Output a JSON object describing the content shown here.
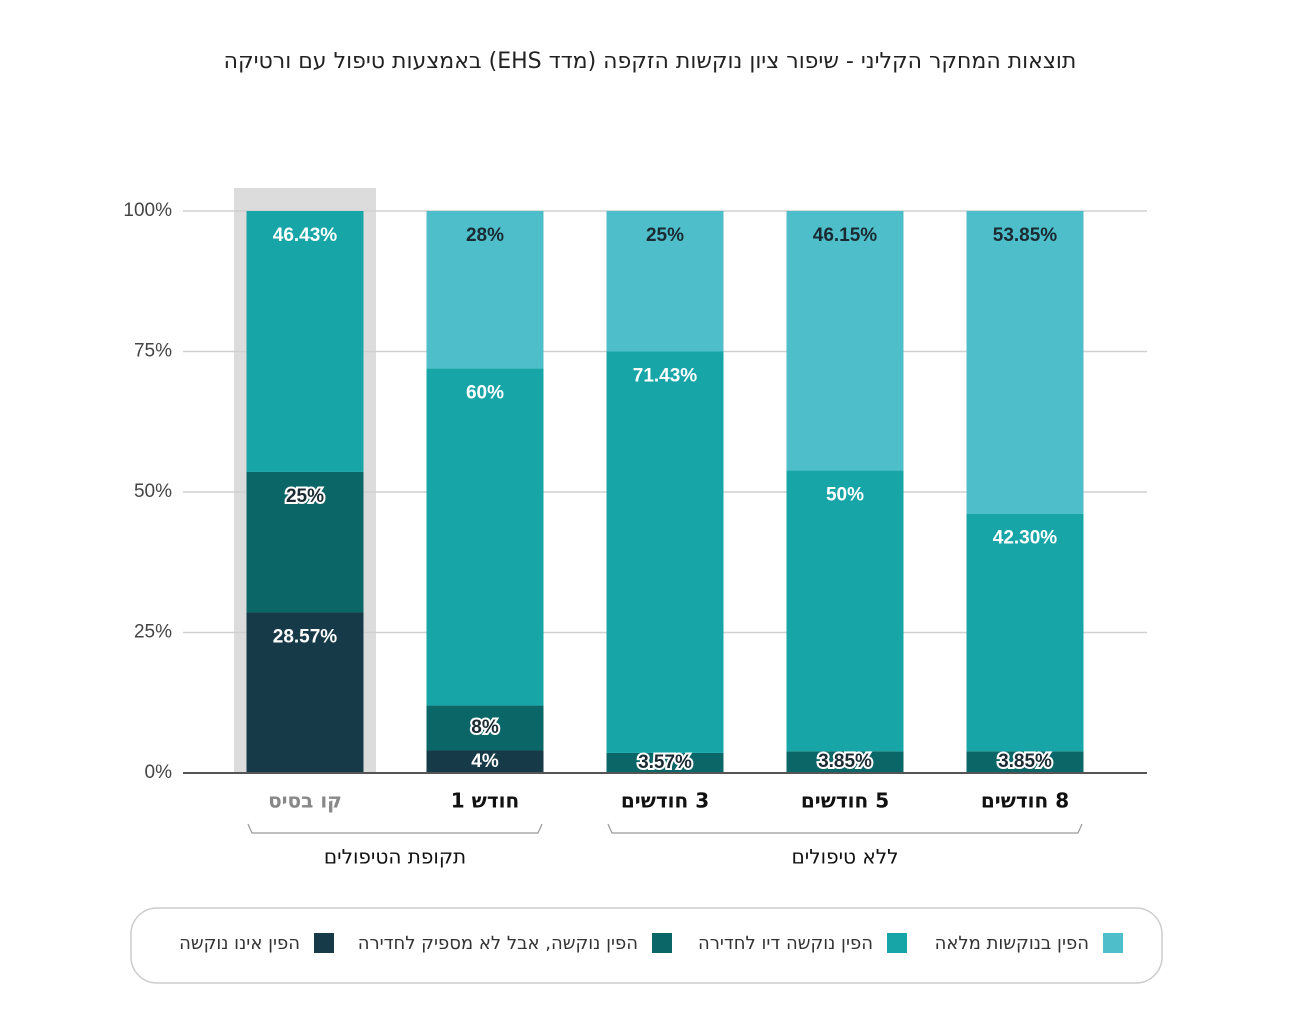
{
  "chart_data": {
    "type": "stacked_bar",
    "title": "תוצאות המחקר הקליני - שיפור ציון נוקשות הזקפה (מדד EHS) באמצעות טיפול עם ורטיקה",
    "categories": [
      "קו בסיס",
      "חודש 1",
      "3 חודשים",
      "5 חודשים",
      "8 חודשים"
    ],
    "highlight": "קו בסיס",
    "groups": [
      {
        "label": "תקופת הטיפולים",
        "members": [
          "קו בסיס",
          "חודש 1"
        ]
      },
      {
        "label": "ללא טיפולים",
        "members": [
          "3 חודשים",
          "5 חודשים",
          "8 חודשים"
        ]
      }
    ],
    "series": [
      {
        "name": "הפין אינו נוקשה",
        "color": "#163a47",
        "values": [
          28.57,
          4,
          0,
          0,
          0
        ],
        "value_labels": [
          "28.57%",
          "4%",
          null,
          null,
          null
        ]
      },
      {
        "name": "הפין נוקשה, אבל לא מספיק לחדירה",
        "color": "#0b6667",
        "values": [
          25,
          8,
          3.57,
          3.85,
          3.85
        ],
        "value_labels": [
          "25%",
          "8%",
          "3.57%",
          "3.85%",
          "3.85%"
        ]
      },
      {
        "name": "הפין נוקשה דיו לחדירה",
        "color": "#17a5a8",
        "values": [
          46.43,
          60,
          71.43,
          50,
          42.3
        ],
        "value_labels": [
          "46.43%",
          "60%",
          "71.43%",
          "50%",
          "42.30%"
        ]
      },
      {
        "name": "הפין בנוקשות מלאה",
        "color": "#4ebfca",
        "values": [
          0,
          28,
          25,
          46.15,
          53.85
        ],
        "value_labels": [
          null,
          "28%",
          "25%",
          "46.15%",
          "53.85%"
        ]
      }
    ],
    "ylim": [
      0,
      100
    ],
    "yticks": [
      {
        "value": 0,
        "label": "0%"
      },
      {
        "value": 25,
        "label": "25%"
      },
      {
        "value": 50,
        "label": "50%"
      },
      {
        "value": 75,
        "label": "75%"
      },
      {
        "value": 100,
        "label": "100%"
      }
    ],
    "grid": true
  }
}
